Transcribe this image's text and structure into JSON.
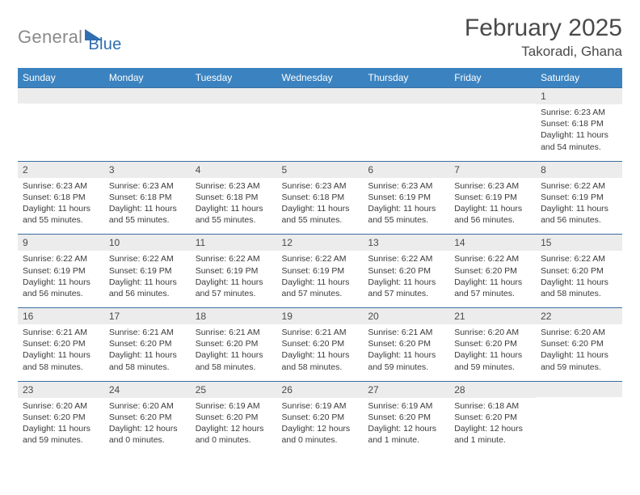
{
  "logo": {
    "part1": "General",
    "part2": "Blue"
  },
  "title": "February 2025",
  "location": "Takoradi, Ghana",
  "colors": {
    "header_bg": "#3b83c0",
    "header_text": "#ffffff",
    "row_border": "#3b6ea0",
    "daynum_bg": "#ececec",
    "text": "#333333"
  },
  "day_names": [
    "Sunday",
    "Monday",
    "Tuesday",
    "Wednesday",
    "Thursday",
    "Friday",
    "Saturday"
  ],
  "weeks": [
    [
      {
        "n": "",
        "sunrise": "",
        "sunset": "",
        "daylight": ""
      },
      {
        "n": "",
        "sunrise": "",
        "sunset": "",
        "daylight": ""
      },
      {
        "n": "",
        "sunrise": "",
        "sunset": "",
        "daylight": ""
      },
      {
        "n": "",
        "sunrise": "",
        "sunset": "",
        "daylight": ""
      },
      {
        "n": "",
        "sunrise": "",
        "sunset": "",
        "daylight": ""
      },
      {
        "n": "",
        "sunrise": "",
        "sunset": "",
        "daylight": ""
      },
      {
        "n": "1",
        "sunrise": "Sunrise: 6:23 AM",
        "sunset": "Sunset: 6:18 PM",
        "daylight": "Daylight: 11 hours and 54 minutes."
      }
    ],
    [
      {
        "n": "2",
        "sunrise": "Sunrise: 6:23 AM",
        "sunset": "Sunset: 6:18 PM",
        "daylight": "Daylight: 11 hours and 55 minutes."
      },
      {
        "n": "3",
        "sunrise": "Sunrise: 6:23 AM",
        "sunset": "Sunset: 6:18 PM",
        "daylight": "Daylight: 11 hours and 55 minutes."
      },
      {
        "n": "4",
        "sunrise": "Sunrise: 6:23 AM",
        "sunset": "Sunset: 6:18 PM",
        "daylight": "Daylight: 11 hours and 55 minutes."
      },
      {
        "n": "5",
        "sunrise": "Sunrise: 6:23 AM",
        "sunset": "Sunset: 6:18 PM",
        "daylight": "Daylight: 11 hours and 55 minutes."
      },
      {
        "n": "6",
        "sunrise": "Sunrise: 6:23 AM",
        "sunset": "Sunset: 6:19 PM",
        "daylight": "Daylight: 11 hours and 55 minutes."
      },
      {
        "n": "7",
        "sunrise": "Sunrise: 6:23 AM",
        "sunset": "Sunset: 6:19 PM",
        "daylight": "Daylight: 11 hours and 56 minutes."
      },
      {
        "n": "8",
        "sunrise": "Sunrise: 6:22 AM",
        "sunset": "Sunset: 6:19 PM",
        "daylight": "Daylight: 11 hours and 56 minutes."
      }
    ],
    [
      {
        "n": "9",
        "sunrise": "Sunrise: 6:22 AM",
        "sunset": "Sunset: 6:19 PM",
        "daylight": "Daylight: 11 hours and 56 minutes."
      },
      {
        "n": "10",
        "sunrise": "Sunrise: 6:22 AM",
        "sunset": "Sunset: 6:19 PM",
        "daylight": "Daylight: 11 hours and 56 minutes."
      },
      {
        "n": "11",
        "sunrise": "Sunrise: 6:22 AM",
        "sunset": "Sunset: 6:19 PM",
        "daylight": "Daylight: 11 hours and 57 minutes."
      },
      {
        "n": "12",
        "sunrise": "Sunrise: 6:22 AM",
        "sunset": "Sunset: 6:19 PM",
        "daylight": "Daylight: 11 hours and 57 minutes."
      },
      {
        "n": "13",
        "sunrise": "Sunrise: 6:22 AM",
        "sunset": "Sunset: 6:20 PM",
        "daylight": "Daylight: 11 hours and 57 minutes."
      },
      {
        "n": "14",
        "sunrise": "Sunrise: 6:22 AM",
        "sunset": "Sunset: 6:20 PM",
        "daylight": "Daylight: 11 hours and 57 minutes."
      },
      {
        "n": "15",
        "sunrise": "Sunrise: 6:22 AM",
        "sunset": "Sunset: 6:20 PM",
        "daylight": "Daylight: 11 hours and 58 minutes."
      }
    ],
    [
      {
        "n": "16",
        "sunrise": "Sunrise: 6:21 AM",
        "sunset": "Sunset: 6:20 PM",
        "daylight": "Daylight: 11 hours and 58 minutes."
      },
      {
        "n": "17",
        "sunrise": "Sunrise: 6:21 AM",
        "sunset": "Sunset: 6:20 PM",
        "daylight": "Daylight: 11 hours and 58 minutes."
      },
      {
        "n": "18",
        "sunrise": "Sunrise: 6:21 AM",
        "sunset": "Sunset: 6:20 PM",
        "daylight": "Daylight: 11 hours and 58 minutes."
      },
      {
        "n": "19",
        "sunrise": "Sunrise: 6:21 AM",
        "sunset": "Sunset: 6:20 PM",
        "daylight": "Daylight: 11 hours and 58 minutes."
      },
      {
        "n": "20",
        "sunrise": "Sunrise: 6:21 AM",
        "sunset": "Sunset: 6:20 PM",
        "daylight": "Daylight: 11 hours and 59 minutes."
      },
      {
        "n": "21",
        "sunrise": "Sunrise: 6:20 AM",
        "sunset": "Sunset: 6:20 PM",
        "daylight": "Daylight: 11 hours and 59 minutes."
      },
      {
        "n": "22",
        "sunrise": "Sunrise: 6:20 AM",
        "sunset": "Sunset: 6:20 PM",
        "daylight": "Daylight: 11 hours and 59 minutes."
      }
    ],
    [
      {
        "n": "23",
        "sunrise": "Sunrise: 6:20 AM",
        "sunset": "Sunset: 6:20 PM",
        "daylight": "Daylight: 11 hours and 59 minutes."
      },
      {
        "n": "24",
        "sunrise": "Sunrise: 6:20 AM",
        "sunset": "Sunset: 6:20 PM",
        "daylight": "Daylight: 12 hours and 0 minutes."
      },
      {
        "n": "25",
        "sunrise": "Sunrise: 6:19 AM",
        "sunset": "Sunset: 6:20 PM",
        "daylight": "Daylight: 12 hours and 0 minutes."
      },
      {
        "n": "26",
        "sunrise": "Sunrise: 6:19 AM",
        "sunset": "Sunset: 6:20 PM",
        "daylight": "Daylight: 12 hours and 0 minutes."
      },
      {
        "n": "27",
        "sunrise": "Sunrise: 6:19 AM",
        "sunset": "Sunset: 6:20 PM",
        "daylight": "Daylight: 12 hours and 1 minute."
      },
      {
        "n": "28",
        "sunrise": "Sunrise: 6:18 AM",
        "sunset": "Sunset: 6:20 PM",
        "daylight": "Daylight: 12 hours and 1 minute."
      },
      {
        "n": "",
        "sunrise": "",
        "sunset": "",
        "daylight": ""
      }
    ]
  ]
}
